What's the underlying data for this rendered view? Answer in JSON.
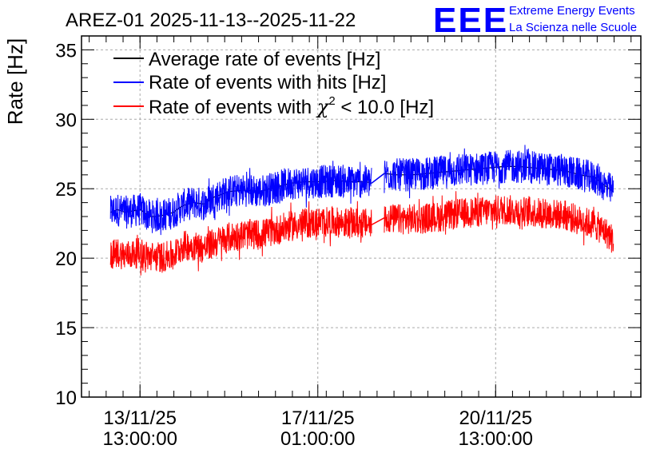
{
  "chart_data": {
    "type": "line",
    "title": "AREZ-01 2025-11-13--2025-11-22",
    "ylabel": "Rate [Hz]",
    "xlabel": "",
    "ylim": [
      10,
      36
    ],
    "yticks": [
      10,
      15,
      20,
      25,
      30,
      35
    ],
    "grid": true,
    "legend_position": "top-left",
    "x_axis": {
      "unit": "days since 2025-11-13 00:00",
      "range": [
        -0.61,
        10.4
      ],
      "major_ticks": [
        {
          "x": 0.5417,
          "line1": "13/11/25",
          "line2": "13:00:00"
        },
        {
          "x": 4.0417,
          "line1": "17/11/25",
          "line2": "01:00:00"
        },
        {
          "x": 7.5417,
          "line1": "20/11/25",
          "line2": "13:00:00"
        }
      ]
    },
    "legend": [
      {
        "key": "average",
        "label": "Average rate of events [Hz]"
      },
      {
        "key": "hits",
        "label": "Rate of events with hits [Hz]"
      },
      {
        "key": "chi2",
        "label_prefix": "Rate of events with ",
        "symbol": "χ",
        "superscript": "2",
        "label_suffix": " < 10.0 [Hz]"
      }
    ],
    "series": [
      {
        "name": "Average rate of events [Hz]",
        "color": "#000000",
        "segments": [
          {
            "x": [
              -0.04,
              0.1,
              0.25,
              0.4,
              0.55,
              0.65,
              0.75,
              0.85,
              1.0,
              1.2,
              1.3,
              1.4,
              1.6,
              1.8,
              2.0,
              2.3,
              2.6,
              2.9,
              3.2,
              3.5,
              3.8,
              4.1,
              4.4,
              4.7,
              5.0,
              5.1
            ],
            "y": [
              23.3,
              23.5,
              23.3,
              23.4,
              23.5,
              23.2,
              23.0,
              23.0,
              23.1,
              23.3,
              23.6,
              23.8,
              24.0,
              23.9,
              24.4,
              24.8,
              24.9,
              24.8,
              25.1,
              25.4,
              25.5,
              25.5,
              25.6,
              25.5,
              25.5,
              25.4
            ]
          },
          {
            "x": [
              5.1,
              5.35
            ],
            "y": [
              25.4,
              26.1
            ]
          },
          {
            "x": [
              5.35,
              5.6,
              5.9,
              6.2,
              6.5,
              6.8,
              7.1,
              7.4,
              7.7,
              8.0,
              8.3,
              8.6,
              8.9,
              9.2,
              9.5,
              9.7,
              9.86
            ],
            "y": [
              26.1,
              26.0,
              26.0,
              26.1,
              26.2,
              26.3,
              26.4,
              26.5,
              26.6,
              26.6,
              26.5,
              26.4,
              26.3,
              26.0,
              25.8,
              25.2,
              24.8
            ]
          }
        ]
      },
      {
        "name": "Rate of events with hits [Hz]",
        "color": "#0000ff",
        "segments": [
          {
            "x": [
              -0.04,
              0.1,
              0.25,
              0.4,
              0.55,
              0.65,
              0.75,
              0.85,
              1.0,
              1.2,
              1.3,
              1.4,
              1.6,
              1.8,
              2.0,
              2.3,
              2.6,
              2.9,
              3.2,
              3.5,
              3.8,
              4.1,
              4.4,
              4.7,
              5.0,
              5.1
            ],
            "y": [
              23.3,
              23.5,
              23.3,
              23.4,
              23.5,
              23.2,
              23.0,
              23.0,
              23.1,
              23.3,
              23.6,
              23.8,
              24.0,
              23.9,
              24.4,
              24.8,
              24.9,
              24.8,
              25.1,
              25.4,
              25.5,
              25.5,
              25.6,
              25.5,
              25.5,
              25.4
            ]
          },
          {
            "x": [
              5.1,
              5.35
            ],
            "y": [
              25.4,
              26.1
            ]
          },
          {
            "x": [
              5.35,
              5.6,
              5.9,
              6.2,
              6.5,
              6.8,
              7.1,
              7.4,
              7.7,
              8.0,
              8.3,
              8.6,
              8.9,
              9.2,
              9.5,
              9.7,
              9.86
            ],
            "y": [
              26.1,
              26.0,
              26.0,
              26.1,
              26.2,
              26.3,
              26.4,
              26.5,
              26.6,
              26.6,
              26.5,
              26.4,
              26.3,
              26.0,
              25.8,
              25.2,
              24.8
            ]
          }
        ],
        "noise_amplitude": 1.2
      },
      {
        "name": "Rate of events with χ2 < 10.0 [Hz]",
        "color": "#ff0000",
        "segments": [
          {
            "x": [
              -0.04,
              0.1,
              0.25,
              0.4,
              0.55,
              0.65,
              0.75,
              0.85,
              1.0,
              1.2,
              1.3,
              1.4,
              1.6,
              1.8,
              2.0,
              2.3,
              2.6,
              2.9,
              3.2,
              3.5,
              3.8,
              4.1,
              4.4,
              4.7,
              5.0,
              5.1
            ],
            "y": [
              20.2,
              20.4,
              20.2,
              20.3,
              20.4,
              20.2,
              20.1,
              20.1,
              20.1,
              20.2,
              20.6,
              20.9,
              20.9,
              20.7,
              21.1,
              21.5,
              21.7,
              21.7,
              22.0,
              22.3,
              22.5,
              22.6,
              22.6,
              22.5,
              22.5,
              22.4
            ]
          },
          {
            "x": [
              5.1,
              5.35
            ],
            "y": [
              22.4,
              22.9
            ]
          },
          {
            "x": [
              5.35,
              5.6,
              5.9,
              6.2,
              6.5,
              6.8,
              7.1,
              7.4,
              7.7,
              8.0,
              8.3,
              8.6,
              8.9,
              9.2,
              9.5,
              9.7,
              9.86
            ],
            "y": [
              22.9,
              22.8,
              22.8,
              22.9,
              23.0,
              23.2,
              23.3,
              23.4,
              23.5,
              23.4,
              23.3,
              23.2,
              23.1,
              22.7,
              22.4,
              21.9,
              21.3
            ]
          }
        ],
        "noise_amplitude": 1.1
      }
    ]
  },
  "logo": {
    "mark": "EEE",
    "line1": "Extreme Energy Events",
    "line2": "La Scienza nelle Scuole",
    "color": "#0000ff"
  }
}
